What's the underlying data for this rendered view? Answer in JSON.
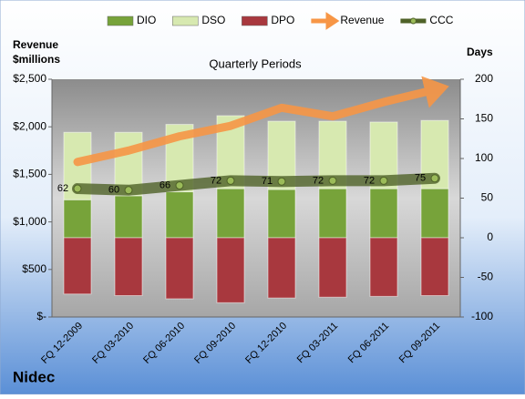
{
  "chart_data": {
    "type": "bar",
    "title": "Quarterly Periods",
    "caption": "Nidec",
    "y_label": [
      "Revenue",
      "$millions"
    ],
    "y2_label": "Days",
    "categories": [
      "FQ 12-2009",
      "FQ 03-2010",
      "FQ 06-2010",
      "FQ 09-2010",
      "FQ 12-2010",
      "FQ 03-2011",
      "FQ 06-2011",
      "FQ 09-2011"
    ],
    "series": [
      {
        "name": "DIO",
        "type": "bar",
        "axis": "y2",
        "color": "#77a33a",
        "values": [
          48,
          53,
          58,
          62,
          61,
          62,
          62,
          62
        ]
      },
      {
        "name": "DSO",
        "type": "bar",
        "axis": "y2",
        "color": "#d7e9b0",
        "values": [
          85,
          80,
          85,
          92,
          86,
          85,
          84,
          86
        ]
      },
      {
        "name": "DPO",
        "type": "bar",
        "axis": "y2",
        "color": "#a8383e",
        "values": [
          -71,
          -73,
          -77,
          -82,
          -76,
          -75,
          -74,
          -73
        ]
      },
      {
        "name": "Revenue",
        "type": "line",
        "axis": "y",
        "color": "#f79646",
        "values": [
          1630,
          1750,
          1900,
          2010,
          2200,
          2110,
          2260,
          2390
        ]
      },
      {
        "name": "CCC",
        "type": "line",
        "axis": "y2",
        "color": "#4f6228",
        "values": [
          62,
          60,
          66,
          72,
          71,
          72,
          72,
          75
        ]
      }
    ],
    "ylim": [
      0,
      2500
    ],
    "yticks": [
      {
        "value": 0,
        "label": "$-"
      },
      {
        "value": 500,
        "label": "$500"
      },
      {
        "value": 1000,
        "label": "$1,000"
      },
      {
        "value": 1500,
        "label": "$1,500"
      },
      {
        "value": 2000,
        "label": "$2,000"
      },
      {
        "value": 2500,
        "label": "$2,500"
      }
    ],
    "y2lim": [
      -100,
      200
    ],
    "y2ticks": [
      -100,
      -50,
      0,
      50,
      100,
      150,
      200
    ],
    "legend": "top"
  }
}
